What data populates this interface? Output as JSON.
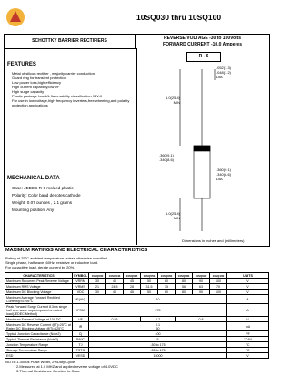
{
  "header": {
    "title": "10SQ030 thru 10SQ100"
  },
  "product": {
    "type": "SCHOTTKY BARRIER RECTIFIERS",
    "ratings": [
      "REVERSE VOLTAGE -30 to 100Volts",
      "FORWARD CURRENT -10.0 Amperes"
    ]
  },
  "features": {
    "heading": "FEATURES",
    "items": [
      "Metal of silicon rectifier , majority carrier conduction",
      "Guard ring for transient protection",
      "Low power loss,high efficiency",
      "High current capability,low VF",
      "High surge capacity",
      "Plastic package has UL flammability classification 94V-0",
      "For use in low voltage,high frequency inverters,free wheeling,and polarity protection applications"
    ]
  },
  "mechanical": {
    "heading": "MECHANICAL DATA",
    "items": [
      "Case: JEDEC R-6 molded plastic",
      "Polarity: Color band denotes cathode",
      "Weight: 0.07 ounces , 2.1 grams",
      "Mounting position: Any"
    ]
  },
  "diagram": {
    "package": "R - 6",
    "lead_length_top": [
      "1.0(25.4)",
      "MIN"
    ],
    "lead_dia": [
      ".052(1.3)",
      ".048(1.2)",
      "DIA"
    ],
    "body_length": [
      ".360(9.1)",
      ".340(8.6)"
    ],
    "body_dia": [
      ".360(9.1)",
      ".340(8.6)",
      "DIA"
    ],
    "lead_length_bottom": [
      "1.0(25.4)",
      "MIN"
    ],
    "caption": "Dimensions in inches and (millimeters)"
  },
  "ratings": {
    "heading": "MAXIMUM RATINGS AND ELECTRICAL CHARACTERISTICS",
    "notes": [
      "Rating at 25°C ambient temperature unless otherwise specified.",
      "Single phase, half wave ,60Hz, resistive or inductive load.",
      "For capacitive load, derate current by 20%."
    ]
  },
  "table": {
    "header": [
      "CHARACTERISTICS",
      "SYMBOL",
      "10SQ030",
      "10SQ040",
      "10SQ045",
      "10SQ050",
      "10SQ060",
      "10SQ080",
      "10SQ090",
      "10SQ100",
      "UNITS"
    ],
    "rows": [
      {
        "label": "Maximum Recurrent Peak Reverse Voltage",
        "symbol": "VRRM",
        "values": [
          "30",
          "40",
          "45",
          "50",
          "60",
          "80",
          "90",
          "100"
        ],
        "unit": "V"
      },
      {
        "label": "Maximum RMS Voltage",
        "symbol": "VRMS",
        "values": [
          "21",
          "24.5",
          "28",
          "31.5",
          "35",
          "56",
          "63",
          "70"
        ],
        "unit": "V"
      },
      {
        "label": "Maximum DC Blocking Voltage",
        "symbol": "VDC",
        "values": [
          "30",
          "40",
          "45",
          "50",
          "60",
          "80",
          "90",
          "100"
        ],
        "unit": "V"
      },
      {
        "label": "Maximum Average Forward Rectified Current@Tc=95°C",
        "symbol": "IF(AV)",
        "values": [
          "10"
        ],
        "unit": "A"
      },
      {
        "label": "Peak Forward Surge Current 8.3ms single half sine-wave superimposed on rated load(JEDEC Method)",
        "symbol": "IFSM",
        "values": [
          "275"
        ],
        "unit": "A"
      },
      {
        "label": "Maximum Forward Voltage at 10A DC",
        "symbol": "VF",
        "values": [
          "0.55",
          "0.7",
          "0.8"
        ],
        "unit": "V"
      },
      {
        "label": "Maximum DC Reverse Current @Tj=25°C at Rated DC Blocking Voltage @Tj=125°C",
        "symbol": "IR",
        "values": [
          "0.1",
          "50"
        ],
        "unit": "mA"
      },
      {
        "label": "Typical Junction Capacitance (Note2)",
        "symbol": "Cj",
        "values": [
          "400"
        ],
        "unit": "PF"
      },
      {
        "label": "Typical Thermal Resistance (Note3)",
        "symbol": "RθJC",
        "values": [
          "5"
        ],
        "unit": "°C/W"
      },
      {
        "label": "Junction Temperature Range",
        "symbol": "TJ",
        "values": [
          "-50 to 175"
        ],
        "unit": "°C"
      },
      {
        "label": "Storage Temperature Range",
        "symbol": "TSTG",
        "values": [
          "-55 to 175"
        ],
        "unit": "°C"
      },
      {
        "label": "ESD",
        "symbol": "VESD",
        "values": [
          "15000"
        ],
        "unit": "V"
      }
    ]
  },
  "footnotes": [
    "NOTE:1.300us Pulse Width, 2%Duty Cycle",
    "2.Measured at 1.0 MHZ and applied reverse voltage of 4.0VDC",
    "3.Thermal Resistance Junction to Case"
  ]
}
